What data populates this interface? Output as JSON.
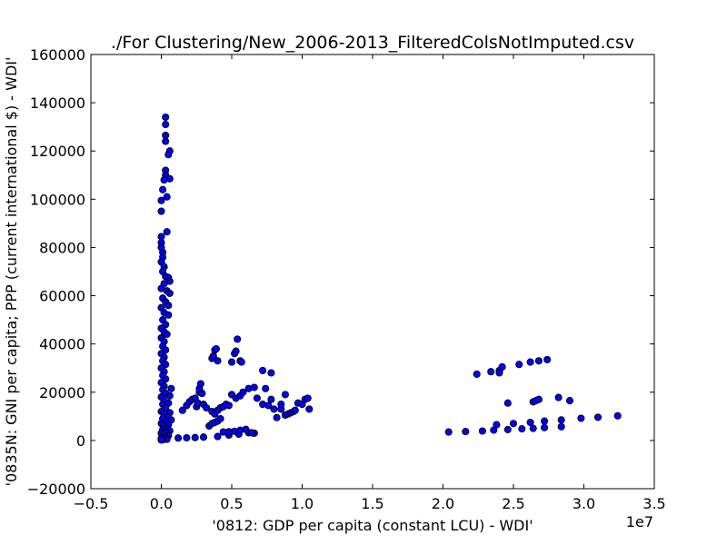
{
  "chart_data": {
    "type": "scatter",
    "title": "./For Clustering/New_2006-2013_FilteredColsNotImputed.csv",
    "xlabel": "'0812: GDP per capita  (constant LCU) - WDI'",
    "ylabel": "'0835N: GNI per capita; PPP  (current international $) - WDI'",
    "x_offset_label": "1e7",
    "xlim": [
      -0.5,
      3.5
    ],
    "ylim": [
      -20000,
      160000
    ],
    "x_ticks": [
      -0.5,
      0.0,
      0.5,
      1.0,
      1.5,
      2.0,
      2.5,
      3.0,
      3.5
    ],
    "x_tick_labels": [
      "−0.5",
      "0.0",
      "0.5",
      "1.0",
      "1.5",
      "2.0",
      "2.5",
      "3.0",
      "3.5"
    ],
    "y_ticks": [
      -20000,
      0,
      20000,
      40000,
      60000,
      80000,
      100000,
      120000,
      140000,
      160000
    ],
    "y_tick_labels": [
      "−20000",
      "0",
      "20000",
      "40000",
      "60000",
      "80000",
      "100000",
      "120000",
      "140000",
      "160000"
    ],
    "grid": false,
    "marker_color": "#0000ff",
    "marker_edge_color": "#000000",
    "points": [
      [
        0.03,
        134000
      ],
      [
        0.03,
        131000
      ],
      [
        0.03,
        126500
      ],
      [
        0.03,
        124000
      ],
      [
        0.06,
        120000
      ],
      [
        0.05,
        118500
      ],
      [
        0.03,
        112000
      ],
      [
        0.03,
        110000
      ],
      [
        0.06,
        108500
      ],
      [
        0.02,
        108000
      ],
      [
        0.01,
        104000
      ],
      [
        0.04,
        101000
      ],
      [
        0.0,
        99500
      ],
      [
        0.0,
        95000
      ],
      [
        0.04,
        86500
      ],
      [
        0.0,
        84500
      ],
      [
        0.0,
        82000
      ],
      [
        0.0,
        80000
      ],
      [
        0.01,
        78000
      ],
      [
        0.01,
        76000
      ],
      [
        0.0,
        74000
      ],
      [
        0.02,
        72000
      ],
      [
        0.01,
        70000
      ],
      [
        0.03,
        68000
      ],
      [
        0.05,
        67500
      ],
      [
        0.06,
        66000
      ],
      [
        0.02,
        65000
      ],
      [
        0.0,
        63000
      ],
      [
        0.04,
        62000
      ],
      [
        0.06,
        61000
      ],
      [
        0.01,
        59000
      ],
      [
        0.03,
        57500
      ],
      [
        0.05,
        56000
      ],
      [
        0.0,
        55000
      ],
      [
        0.02,
        53000
      ],
      [
        0.05,
        52000
      ],
      [
        0.01,
        50000
      ],
      [
        0.03,
        48000
      ],
      [
        0.0,
        46500
      ],
      [
        0.02,
        45000
      ],
      [
        0.04,
        44000
      ],
      [
        0.0,
        42500
      ],
      [
        0.02,
        41000
      ],
      [
        0.01,
        39000
      ],
      [
        0.03,
        37500
      ],
      [
        0.0,
        36000
      ],
      [
        0.02,
        34500
      ],
      [
        0.01,
        33000
      ],
      [
        0.03,
        31500
      ],
      [
        0.0,
        30000
      ],
      [
        0.02,
        28500
      ],
      [
        0.01,
        27000
      ],
      [
        0.03,
        25500
      ],
      [
        0.0,
        24000
      ],
      [
        0.02,
        22500
      ],
      [
        0.07,
        21500
      ],
      [
        0.01,
        21000
      ],
      [
        0.03,
        19500
      ],
      [
        0.06,
        18500
      ],
      [
        0.0,
        18000
      ],
      [
        0.02,
        16500
      ],
      [
        0.05,
        15500
      ],
      [
        0.01,
        15000
      ],
      [
        0.03,
        13500
      ],
      [
        0.0,
        12000
      ],
      [
        0.06,
        11500
      ],
      [
        0.02,
        10500
      ],
      [
        0.04,
        9500
      ],
      [
        0.01,
        9000
      ],
      [
        0.07,
        8500
      ],
      [
        0.03,
        7500
      ],
      [
        0.0,
        7000
      ],
      [
        0.05,
        6500
      ],
      [
        0.02,
        6000
      ],
      [
        0.04,
        5000
      ],
      [
        0.01,
        4500
      ],
      [
        0.06,
        4000
      ],
      [
        0.03,
        3500
      ],
      [
        0.0,
        3000
      ],
      [
        0.02,
        2500
      ],
      [
        0.05,
        2000
      ],
      [
        0.01,
        1500
      ],
      [
        0.03,
        1200
      ],
      [
        0.0,
        900
      ],
      [
        0.02,
        700
      ],
      [
        0.04,
        500
      ],
      [
        0.01,
        300
      ],
      [
        0.0,
        200
      ],
      [
        0.12,
        1000
      ],
      [
        0.18,
        1100
      ],
      [
        0.24,
        1200
      ],
      [
        0.3,
        1400
      ],
      [
        0.4,
        1600
      ],
      [
        0.48,
        2200
      ],
      [
        0.55,
        2600
      ],
      [
        0.62,
        3200
      ],
      [
        0.66,
        3000
      ],
      [
        0.15,
        12500
      ],
      [
        0.18,
        14500
      ],
      [
        0.2,
        16000
      ],
      [
        0.22,
        17000
      ],
      [
        0.24,
        17500
      ],
      [
        0.25,
        14000
      ],
      [
        0.26,
        15500
      ],
      [
        0.27,
        20000
      ],
      [
        0.27,
        21500
      ],
      [
        0.28,
        23500
      ],
      [
        0.29,
        19500
      ],
      [
        0.3,
        15000
      ],
      [
        0.32,
        13500
      ],
      [
        0.34,
        6000
      ],
      [
        0.36,
        7000
      ],
      [
        0.38,
        7500
      ],
      [
        0.4,
        8000
      ],
      [
        0.42,
        9000
      ],
      [
        0.36,
        12000
      ],
      [
        0.38,
        11000
      ],
      [
        0.4,
        12500
      ],
      [
        0.42,
        13500
      ],
      [
        0.44,
        14000
      ],
      [
        0.46,
        15000
      ],
      [
        0.48,
        14500
      ],
      [
        0.36,
        34000
      ],
      [
        0.37,
        35000
      ],
      [
        0.38,
        37500
      ],
      [
        0.39,
        38000
      ],
      [
        0.4,
        33000
      ],
      [
        0.44,
        3500
      ],
      [
        0.48,
        3600
      ],
      [
        0.52,
        3800
      ],
      [
        0.56,
        4200
      ],
      [
        0.6,
        4600
      ],
      [
        0.64,
        3200
      ],
      [
        0.5,
        19000
      ],
      [
        0.53,
        17500
      ],
      [
        0.56,
        18500
      ],
      [
        0.58,
        20000
      ],
      [
        0.62,
        21500
      ],
      [
        0.66,
        22000
      ],
      [
        0.5,
        32500
      ],
      [
        0.52,
        36000
      ],
      [
        0.53,
        37000
      ],
      [
        0.54,
        42000
      ],
      [
        0.56,
        33000
      ],
      [
        0.57,
        32500
      ],
      [
        0.68,
        17500
      ],
      [
        0.72,
        15000
      ],
      [
        0.76,
        14500
      ],
      [
        0.78,
        17000
      ],
      [
        0.8,
        13000
      ],
      [
        0.72,
        29000
      ],
      [
        0.74,
        21500
      ],
      [
        0.78,
        28000
      ],
      [
        0.82,
        9500
      ],
      [
        0.85,
        13000
      ],
      [
        0.88,
        10500
      ],
      [
        0.9,
        11000
      ],
      [
        0.92,
        11500
      ],
      [
        0.94,
        12000
      ],
      [
        0.95,
        12500
      ],
      [
        0.97,
        15500
      ],
      [
        1.0,
        15000
      ],
      [
        1.02,
        17000
      ],
      [
        1.04,
        17500
      ],
      [
        1.05,
        13000
      ],
      [
        0.85,
        15000
      ],
      [
        0.88,
        19000
      ],
      [
        2.04,
        3500
      ],
      [
        2.16,
        3700
      ],
      [
        2.28,
        3900
      ],
      [
        2.36,
        4300
      ],
      [
        2.46,
        4500
      ],
      [
        2.56,
        4800
      ],
      [
        2.64,
        5000
      ],
      [
        2.72,
        5300
      ],
      [
        2.84,
        5700
      ],
      [
        2.38,
        6500
      ],
      [
        2.5,
        7000
      ],
      [
        2.62,
        7500
      ],
      [
        2.72,
        8000
      ],
      [
        2.84,
        8500
      ],
      [
        2.98,
        9200
      ],
      [
        3.1,
        9600
      ],
      [
        3.24,
        10200
      ],
      [
        2.46,
        15500
      ],
      [
        2.64,
        16000
      ],
      [
        2.66,
        16500
      ],
      [
        2.68,
        17000
      ],
      [
        2.82,
        17800
      ],
      [
        2.9,
        16500
      ],
      [
        2.24,
        27500
      ],
      [
        2.34,
        28500
      ],
      [
        2.4,
        29000
      ],
      [
        2.42,
        30500
      ],
      [
        2.54,
        31500
      ],
      [
        2.62,
        32500
      ],
      [
        2.68,
        33000
      ],
      [
        2.74,
        33500
      ],
      [
        2.4,
        28000
      ]
    ]
  }
}
